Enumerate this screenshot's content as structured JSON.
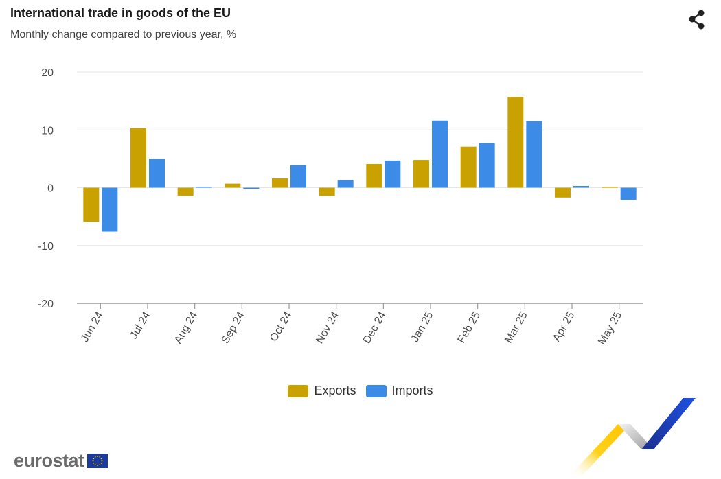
{
  "header": {
    "title": "International trade in goods of the EU",
    "subtitle": "Monthly change compared to previous year, %"
  },
  "share": {
    "icon": "share-icon"
  },
  "branding": {
    "logo_text": "eurostat",
    "flag_icon": "eu-flag-icon"
  },
  "colors": {
    "exports": "#c9a100",
    "imports": "#3c8ce7",
    "grid": "#e6e6ef",
    "axis": "#9a9a9a"
  },
  "chart_data": {
    "type": "bar",
    "categories": [
      "Jun 24",
      "Jul 24",
      "Aug 24",
      "Sep 24",
      "Oct 24",
      "Nov 24",
      "Dec 24",
      "Jan 25",
      "Feb 25",
      "Mar 25",
      "Apr 25",
      "May 25"
    ],
    "series": [
      {
        "name": "Exports",
        "values": [
          -5.9,
          10.3,
          -1.4,
          0.7,
          1.6,
          -1.4,
          4.1,
          4.8,
          7.1,
          15.7,
          -1.7,
          0.1
        ]
      },
      {
        "name": "Imports",
        "values": [
          -7.6,
          5.0,
          0.1,
          -0.2,
          3.9,
          1.3,
          4.7,
          11.6,
          7.7,
          11.5,
          0.3,
          -2.1
        ]
      }
    ],
    "y_ticks": [
      "20",
      "10",
      "0",
      "-10",
      "-20"
    ],
    "ylim": [
      -20,
      20
    ],
    "grid": true,
    "legend_position": "bottom-center",
    "title": "International trade in goods of the EU",
    "subtitle": "Monthly change compared to previous year, %"
  }
}
